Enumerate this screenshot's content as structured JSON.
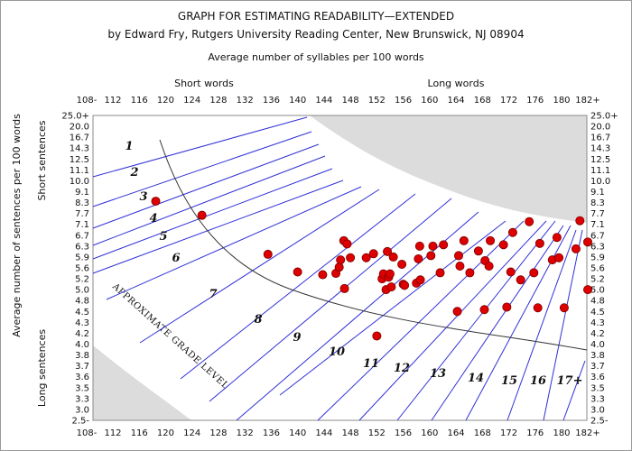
{
  "chart_data": {
    "type": "scatter",
    "title": "GRAPH FOR ESTIMATING READABILITY—EXTENDED",
    "subtitle": "by Edward Fry, Rutgers University Reading Center, New Brunswick, NJ 08904",
    "xlabel": "Average number of syllables per 100 words",
    "ylabel": "Average number of sentences per 100 words",
    "top_left_label": "Short words",
    "top_right_label": "Long words",
    "left_top_label": "Short sentences",
    "left_bottom_label": "Long sentences",
    "diagonal_label": "APPROXIMATE GRADE LEVEL",
    "xlim": [
      108,
      182
    ],
    "y_scale": "categorical-nonlinear",
    "x_ticks": [
      "108-",
      "112",
      "116",
      "120",
      "124",
      "128",
      "132",
      "136",
      "140",
      "144",
      "148",
      "152",
      "156",
      "160",
      "164",
      "168",
      "172",
      "176",
      "180",
      "182+"
    ],
    "y_ticks": [
      "25.0+",
      "20.0",
      "16.7",
      "14.3",
      "12.5",
      "11.1",
      "10.0",
      "9.1",
      "8.3",
      "7.7",
      "7.1",
      "6.7",
      "6.3",
      "5.9",
      "5.6",
      "5.2",
      "5.0",
      "4.8",
      "4.5",
      "4.3",
      "4.2",
      "4.0",
      "3.8",
      "3.7",
      "3.6",
      "3.5",
      "3.3",
      "3.0",
      "2.5-"
    ],
    "grade_labels": [
      "1",
      "2",
      "3",
      "4",
      "5",
      "6",
      "7",
      "8",
      "9",
      "10",
      "11",
      "12",
      "13",
      "14",
      "15",
      "16",
      "17+"
    ],
    "grid": false,
    "points": [
      {
        "x": 118.5,
        "y": 8.4
      },
      {
        "x": 125.5,
        "y": 7.6
      },
      {
        "x": 135.5,
        "y": 6.0
      },
      {
        "x": 140.0,
        "y": 5.45
      },
      {
        "x": 143.8,
        "y": 5.35
      },
      {
        "x": 145.8,
        "y": 5.4
      },
      {
        "x": 146.3,
        "y": 5.62
      },
      {
        "x": 146.5,
        "y": 5.82
      },
      {
        "x": 147.0,
        "y": 6.5
      },
      {
        "x": 147.5,
        "y": 6.38
      },
      {
        "x": 148.0,
        "y": 5.88
      },
      {
        "x": 147.1,
        "y": 5.02
      },
      {
        "x": 150.4,
        "y": 5.88
      },
      {
        "x": 151.5,
        "y": 6.02
      },
      {
        "x": 152.0,
        "y": 4.15
      },
      {
        "x": 152.8,
        "y": 5.2
      },
      {
        "x": 153.0,
        "y": 5.38
      },
      {
        "x": 153.4,
        "y": 5.0
      },
      {
        "x": 153.6,
        "y": 6.1
      },
      {
        "x": 153.8,
        "y": 5.26
      },
      {
        "x": 154.0,
        "y": 5.38
      },
      {
        "x": 154.2,
        "y": 5.05
      },
      {
        "x": 154.5,
        "y": 5.9
      },
      {
        "x": 155.8,
        "y": 5.7
      },
      {
        "x": 156.0,
        "y": 5.1
      },
      {
        "x": 156.2,
        "y": 5.08
      },
      {
        "x": 158.0,
        "y": 5.12
      },
      {
        "x": 158.3,
        "y": 5.85
      },
      {
        "x": 158.5,
        "y": 6.3
      },
      {
        "x": 158.6,
        "y": 5.18
      },
      {
        "x": 160.2,
        "y": 5.95
      },
      {
        "x": 160.5,
        "y": 6.3
      },
      {
        "x": 161.6,
        "y": 5.42
      },
      {
        "x": 162.1,
        "y": 6.35
      },
      {
        "x": 164.2,
        "y": 4.5
      },
      {
        "x": 164.4,
        "y": 5.95
      },
      {
        "x": 164.6,
        "y": 5.65
      },
      {
        "x": 165.2,
        "y": 6.5
      },
      {
        "x": 166.1,
        "y": 5.42
      },
      {
        "x": 167.4,
        "y": 6.12
      },
      {
        "x": 168.3,
        "y": 4.55
      },
      {
        "x": 168.4,
        "y": 5.8
      },
      {
        "x": 169.0,
        "y": 5.65
      },
      {
        "x": 169.2,
        "y": 6.5
      },
      {
        "x": 171.2,
        "y": 6.35
      },
      {
        "x": 171.7,
        "y": 4.62
      },
      {
        "x": 172.3,
        "y": 5.45
      },
      {
        "x": 172.6,
        "y": 6.8
      },
      {
        "x": 173.8,
        "y": 5.18
      },
      {
        "x": 175.1,
        "y": 7.25
      },
      {
        "x": 175.8,
        "y": 5.42
      },
      {
        "x": 176.4,
        "y": 4.6
      },
      {
        "x": 176.7,
        "y": 6.4
      },
      {
        "x": 178.6,
        "y": 5.82
      },
      {
        "x": 179.3,
        "y": 6.62
      },
      {
        "x": 179.6,
        "y": 5.88
      },
      {
        "x": 180.2,
        "y": 4.6
      },
      {
        "x": 181.1,
        "y": 6.2
      },
      {
        "x": 181.4,
        "y": 7.3
      },
      {
        "x": 182.0,
        "y": 6.45
      },
      {
        "x": 182.0,
        "y": 5.0
      }
    ],
    "colors": {
      "point": "#dd0000",
      "grade_line": "#3030d8",
      "curve": "#333333",
      "shade": "#dcdcdc",
      "frame": "#8a8a8a"
    }
  }
}
